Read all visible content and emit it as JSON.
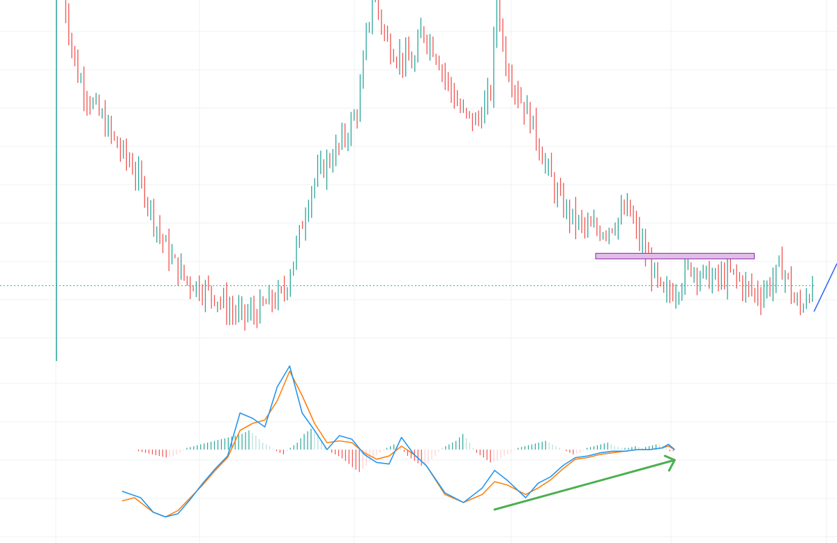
{
  "colors": {
    "background": "#ffffff",
    "grid": "#eef0f3",
    "up": "#26a69a",
    "down": "#ef5350",
    "macd_line": "#2196f3",
    "signal_line": "#ff7f0e",
    "hist_up_strong": "#26a69a",
    "hist_up_weak": "#b2dfdb",
    "hist_down_strong": "#ef5350",
    "hist_down_weak": "#ffcdd2",
    "price_line": "#26a69a",
    "resistance_fill": "#e1bee7",
    "resistance_stroke": "#8e24aa",
    "divergence_arrow": "#4caf50",
    "trend_line": "#2962ff"
  },
  "chart_data": [
    {
      "type": "ohlc",
      "title": "",
      "xlabel": "",
      "ylabel": "",
      "grid": true,
      "x_range": [
        0,
        220
      ],
      "y_range": [
        0,
        100
      ],
      "price_line_value": 18.5,
      "price_path": [
        [
          2,
          100
        ],
        [
          6,
          78
        ],
        [
          10,
          70
        ],
        [
          14,
          64
        ],
        [
          18,
          57
        ],
        [
          22,
          52
        ],
        [
          26,
          44
        ],
        [
          30,
          33
        ],
        [
          34,
          25
        ],
        [
          38,
          20
        ],
        [
          42,
          18
        ],
        [
          46,
          16
        ],
        [
          50,
          12
        ],
        [
          54,
          10
        ],
        [
          58,
          11
        ],
        [
          62,
          14
        ],
        [
          66,
          16
        ],
        [
          70,
          30
        ],
        [
          74,
          46
        ],
        [
          78,
          52
        ],
        [
          82,
          57
        ],
        [
          86,
          64
        ],
        [
          88,
          70
        ],
        [
          90,
          88
        ],
        [
          92,
          100
        ],
        [
          96,
          86
        ],
        [
          100,
          82
        ],
        [
          104,
          80
        ],
        [
          106,
          90
        ],
        [
          110,
          84
        ],
        [
          114,
          74
        ],
        [
          118,
          66
        ],
        [
          122,
          64
        ],
        [
          126,
          72
        ],
        [
          128,
          100
        ],
        [
          130,
          82
        ],
        [
          134,
          72
        ],
        [
          138,
          64
        ],
        [
          142,
          52
        ],
        [
          146,
          42
        ],
        [
          150,
          37
        ],
        [
          154,
          34
        ],
        [
          158,
          34
        ],
        [
          162,
          36
        ],
        [
          166,
          40
        ],
        [
          168,
          34
        ],
        [
          172,
          25
        ],
        [
          176,
          15
        ],
        [
          180,
          18
        ],
        [
          184,
          24
        ],
        [
          188,
          21
        ],
        [
          192,
          20
        ],
        [
          196,
          22
        ],
        [
          200,
          18
        ],
        [
          204,
          16
        ],
        [
          208,
          20
        ],
        [
          210,
          24
        ],
        [
          212,
          21
        ],
        [
          214,
          14
        ],
        [
          216,
          12
        ],
        [
          218,
          18
        ],
        [
          220,
          16
        ]
      ]
    },
    {
      "type": "macd",
      "title": "",
      "xlabel": "",
      "ylabel": "",
      "grid": true,
      "x_range": [
        0,
        220
      ],
      "y_range": [
        -100,
        100
      ],
      "macd": [
        [
          0,
          -52
        ],
        [
          6,
          -60
        ],
        [
          10,
          -78
        ],
        [
          14,
          -84
        ],
        [
          18,
          -80
        ],
        [
          22,
          -62
        ],
        [
          26,
          -42
        ],
        [
          30,
          -24
        ],
        [
          34,
          -8
        ],
        [
          38,
          42
        ],
        [
          42,
          36
        ],
        [
          46,
          26
        ],
        [
          50,
          72
        ],
        [
          54,
          96
        ],
        [
          58,
          42
        ],
        [
          62,
          22
        ],
        [
          66,
          0
        ],
        [
          70,
          16
        ],
        [
          74,
          12
        ],
        [
          78,
          -6
        ],
        [
          82,
          -16
        ],
        [
          86,
          -18
        ],
        [
          90,
          14
        ],
        [
          94,
          -6
        ],
        [
          98,
          -20
        ],
        [
          104,
          -54
        ],
        [
          110,
          -66
        ],
        [
          116,
          -48
        ],
        [
          120,
          -26
        ],
        [
          124,
          -38
        ],
        [
          130,
          -60
        ],
        [
          134,
          -42
        ],
        [
          138,
          -34
        ],
        [
          142,
          -20
        ],
        [
          146,
          -10
        ],
        [
          150,
          -8
        ],
        [
          154,
          -4
        ],
        [
          158,
          -2
        ],
        [
          162,
          -2
        ],
        [
          166,
          0
        ],
        [
          170,
          0
        ],
        [
          174,
          2
        ],
        [
          176,
          6
        ],
        [
          178,
          0
        ]
      ],
      "signal": [
        [
          0,
          -64
        ],
        [
          4,
          -60
        ],
        [
          10,
          -78
        ],
        [
          14,
          -84
        ],
        [
          18,
          -76
        ],
        [
          22,
          -60
        ],
        [
          26,
          -44
        ],
        [
          30,
          -26
        ],
        [
          34,
          -10
        ],
        [
          38,
          22
        ],
        [
          42,
          30
        ],
        [
          46,
          34
        ],
        [
          50,
          56
        ],
        [
          54,
          90
        ],
        [
          58,
          62
        ],
        [
          62,
          30
        ],
        [
          66,
          8
        ],
        [
          70,
          10
        ],
        [
          74,
          8
        ],
        [
          78,
          -4
        ],
        [
          82,
          -12
        ],
        [
          86,
          -8
        ],
        [
          90,
          4
        ],
        [
          94,
          -6
        ],
        [
          98,
          -20
        ],
        [
          104,
          -56
        ],
        [
          110,
          -66
        ],
        [
          116,
          -56
        ],
        [
          120,
          -40
        ],
        [
          124,
          -44
        ],
        [
          130,
          -56
        ],
        [
          134,
          -48
        ],
        [
          138,
          -38
        ],
        [
          142,
          -24
        ],
        [
          146,
          -12
        ],
        [
          150,
          -10
        ],
        [
          154,
          -6
        ],
        [
          158,
          -4
        ],
        [
          162,
          -2
        ],
        [
          166,
          0
        ],
        [
          170,
          0
        ],
        [
          174,
          2
        ],
        [
          176,
          4
        ],
        [
          178,
          0
        ]
      ],
      "histogram": [
        [
          24,
          -2
        ],
        [
          26,
          -4
        ],
        [
          28,
          -6
        ],
        [
          30,
          -8
        ],
        [
          32,
          -10
        ],
        [
          34,
          -8
        ],
        [
          36,
          -4
        ],
        [
          38,
          2
        ],
        [
          40,
          4
        ],
        [
          42,
          6
        ],
        [
          44,
          8
        ],
        [
          46,
          10
        ],
        [
          48,
          12
        ],
        [
          50,
          14
        ],
        [
          52,
          16
        ],
        [
          54,
          18
        ],
        [
          56,
          22
        ],
        [
          58,
          16
        ],
        [
          60,
          8
        ],
        [
          62,
          4
        ],
        [
          64,
          -2
        ],
        [
          66,
          -6
        ],
        [
          68,
          2
        ],
        [
          70,
          8
        ],
        [
          72,
          18
        ],
        [
          74,
          24
        ],
        [
          76,
          18
        ],
        [
          78,
          4
        ],
        [
          80,
          -4
        ],
        [
          82,
          -8
        ],
        [
          84,
          -14
        ],
        [
          86,
          -22
        ],
        [
          88,
          -28
        ],
        [
          90,
          -20
        ],
        [
          92,
          -10
        ],
        [
          94,
          -4
        ],
        [
          96,
          2
        ],
        [
          98,
          6
        ],
        [
          100,
          2
        ],
        [
          102,
          -8
        ],
        [
          104,
          -14
        ],
        [
          106,
          -20
        ],
        [
          108,
          -16
        ],
        [
          110,
          -8
        ],
        [
          112,
          2
        ],
        [
          114,
          6
        ],
        [
          116,
          10
        ],
        [
          118,
          18
        ],
        [
          120,
          8
        ],
        [
          122,
          -4
        ],
        [
          124,
          -10
        ],
        [
          126,
          -16
        ],
        [
          128,
          -14
        ],
        [
          130,
          -8
        ],
        [
          132,
          -4
        ],
        [
          134,
          2
        ],
        [
          136,
          4
        ],
        [
          138,
          6
        ],
        [
          140,
          8
        ],
        [
          142,
          10
        ],
        [
          144,
          6
        ],
        [
          146,
          2
        ],
        [
          148,
          -2
        ],
        [
          150,
          -6
        ],
        [
          152,
          -4
        ],
        [
          154,
          2
        ],
        [
          156,
          4
        ],
        [
          158,
          6
        ],
        [
          160,
          8
        ],
        [
          162,
          4
        ],
        [
          164,
          2
        ],
        [
          166,
          2
        ],
        [
          168,
          4
        ],
        [
          170,
          2
        ],
        [
          172,
          4
        ],
        [
          174,
          6
        ],
        [
          176,
          4
        ],
        [
          178,
          -2
        ]
      ],
      "annotations": [
        {
          "type": "divergence_arrow",
          "from": [
            120,
            -84
          ],
          "to": [
            178,
            -40
          ]
        }
      ]
    }
  ]
}
